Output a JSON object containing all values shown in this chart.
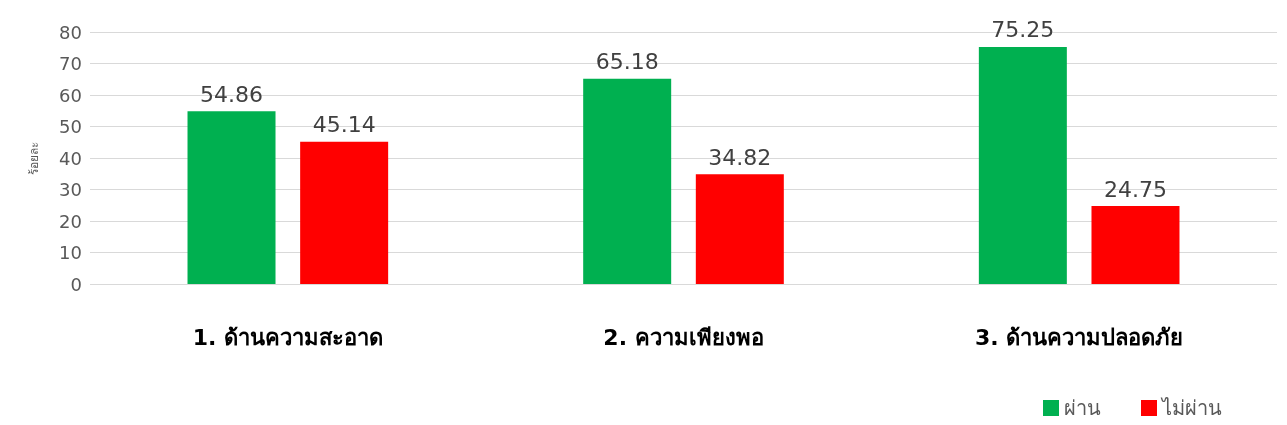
{
  "chart_data": {
    "type": "bar",
    "ylabel": "ร้อยละ",
    "categories": [
      "1. ด้านความสะอาด",
      "2. ความเพียงพอ",
      "3. ด้านความปลอดภัย"
    ],
    "series": [
      {
        "name": "ผ่าน",
        "color": "#00b050",
        "values": [
          54.86,
          65.18,
          75.25
        ]
      },
      {
        "name": "ไม่ผ่าน",
        "color": "#ff0000",
        "values": [
          45.14,
          34.82,
          24.75
        ]
      }
    ],
    "ylim": [
      0,
      80
    ],
    "yticks": [
      0,
      10,
      20,
      30,
      40,
      50,
      60,
      70,
      80
    ],
    "grid": "y",
    "legend": "bottom right",
    "data_labels": true
  }
}
